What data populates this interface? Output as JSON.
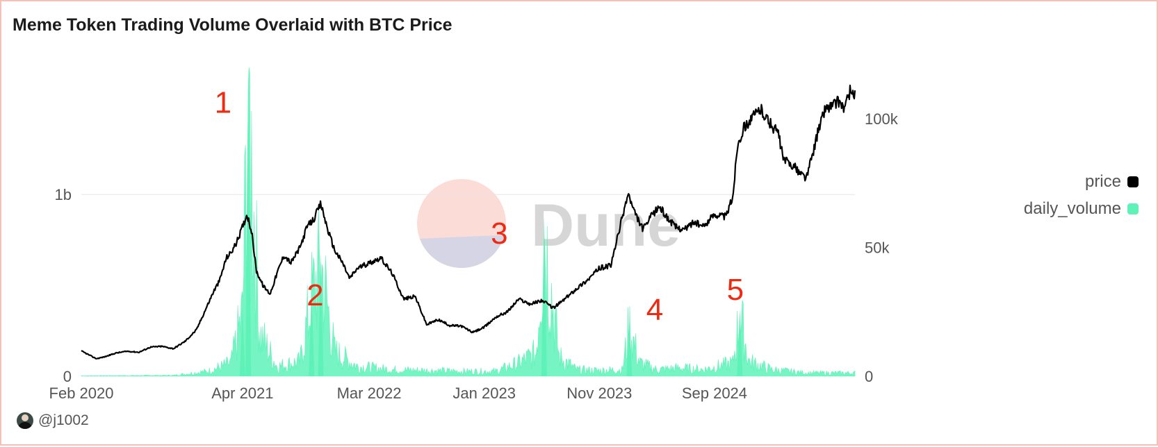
{
  "title": "Meme Token Trading Volume Overlaid with BTC Price",
  "author": "@j1002",
  "watermark": "Dune",
  "colors": {
    "price": "#000000",
    "volume": "#5ef2b8",
    "grid": "#e6e6e6",
    "annotation": "#ee2a12",
    "watermark_top": "#fbdcd6",
    "watermark_bottom": "#d6d5e6"
  },
  "chart_data": {
    "type": "line",
    "title": "Meme Token Trading Volume Overlaid with BTC Price",
    "x_range": [
      "2020-02-01",
      "2025-06-10"
    ],
    "x_ticks": [
      "Feb 2020",
      "Apr 2021",
      "Mar 2022",
      "Jan 2023",
      "Nov 2023",
      "Sep 2024"
    ],
    "x_tick_months": [
      0,
      14,
      25,
      35,
      45,
      55
    ],
    "y_left": {
      "label": "daily_volume",
      "range": [
        0,
        1700000000
      ],
      "ticks": [
        0,
        1000000000
      ],
      "tick_labels": [
        "0",
        "1b"
      ]
    },
    "y_right": {
      "label": "price",
      "range": [
        0,
        120000
      ],
      "ticks": [
        0,
        50000,
        100000
      ],
      "tick_labels": [
        "0",
        "50k",
        "100k"
      ]
    },
    "grid": true,
    "legend_position": "right",
    "series": [
      {
        "name": "price",
        "axis": "right",
        "points": [
          [
            0,
            9800
          ],
          [
            1.3,
            6800
          ],
          [
            2,
            7500
          ],
          [
            3,
            9000
          ],
          [
            4,
            9700
          ],
          [
            5,
            9300
          ],
          [
            6,
            11300
          ],
          [
            7,
            11600
          ],
          [
            8,
            10700
          ],
          [
            9,
            13500
          ],
          [
            10,
            18000
          ],
          [
            11,
            28000
          ],
          [
            11.5,
            33000
          ],
          [
            12,
            37000
          ],
          [
            12.6,
            46000
          ],
          [
            13,
            48000
          ],
          [
            13.5,
            52000
          ],
          [
            14,
            58000
          ],
          [
            14.4,
            63000
          ],
          [
            14.8,
            56000
          ],
          [
            15.2,
            41000
          ],
          [
            15.8,
            35000
          ],
          [
            16.4,
            32000
          ],
          [
            17,
            40000
          ],
          [
            17.6,
            47000
          ],
          [
            18.2,
            44000
          ],
          [
            19,
            50000
          ],
          [
            19.6,
            58000
          ],
          [
            20.2,
            61000
          ],
          [
            20.8,
            67000
          ],
          [
            21.4,
            57000
          ],
          [
            22,
            49000
          ],
          [
            22.7,
            44000
          ],
          [
            23.3,
            38000
          ],
          [
            24,
            42000
          ],
          [
            25,
            44000
          ],
          [
            26,
            46000
          ],
          [
            27,
            40000
          ],
          [
            28,
            30000
          ],
          [
            29,
            31000
          ],
          [
            30,
            20000
          ],
          [
            31,
            22000
          ],
          [
            32,
            19700
          ],
          [
            33,
            19500
          ],
          [
            34,
            17000
          ],
          [
            35,
            19000
          ],
          [
            36,
            23000
          ],
          [
            37,
            25000
          ],
          [
            38,
            30000
          ],
          [
            39,
            28000
          ],
          [
            40,
            29500
          ],
          [
            41,
            26500
          ],
          [
            42,
            30000
          ],
          [
            43,
            34000
          ],
          [
            44,
            37500
          ],
          [
            45,
            42000
          ],
          [
            46,
            43000
          ],
          [
            47,
            62000
          ],
          [
            47.5,
            71000
          ],
          [
            48,
            64000
          ],
          [
            48.8,
            57000
          ],
          [
            49.5,
            62000
          ],
          [
            50.2,
            66000
          ],
          [
            51,
            61000
          ],
          [
            51.6,
            58000
          ],
          [
            52.4,
            57000
          ],
          [
            53.2,
            60000
          ],
          [
            54,
            58000
          ],
          [
            55,
            63000
          ],
          [
            56,
            62000
          ],
          [
            56.6,
            70000
          ],
          [
            57,
            90000
          ],
          [
            57.6,
            97000
          ],
          [
            58.2,
            100000
          ],
          [
            59,
            104000
          ],
          [
            60,
            97000
          ],
          [
            60.5,
            95000
          ],
          [
            61,
            84000
          ],
          [
            61.8,
            82000
          ],
          [
            62.4,
            79000
          ],
          [
            63,
            77000
          ],
          [
            64,
            95000
          ],
          [
            64.6,
            104000
          ],
          [
            65.2,
            105000
          ],
          [
            65.8,
            107000
          ],
          [
            66.3,
            104000
          ],
          [
            66.8,
            111000
          ],
          [
            67.2,
            109000
          ]
        ]
      },
      {
        "name": "daily_volume",
        "axis": "left",
        "points": [
          [
            0,
            2000000
          ],
          [
            8,
            5000000
          ],
          [
            11,
            30000000
          ],
          [
            13,
            80000000
          ],
          [
            14,
            380000000
          ],
          [
            14.5,
            1700000000
          ],
          [
            15.5,
            260000000
          ],
          [
            17,
            60000000
          ],
          [
            19,
            90000000
          ],
          [
            20,
            470000000
          ],
          [
            20.8,
            680000000
          ],
          [
            22,
            150000000
          ],
          [
            24,
            60000000
          ],
          [
            27,
            40000000
          ],
          [
            30,
            35000000
          ],
          [
            33,
            30000000
          ],
          [
            36,
            30000000
          ],
          [
            38,
            80000000
          ],
          [
            39.5,
            140000000
          ],
          [
            40.2,
            880000000
          ],
          [
            41.5,
            120000000
          ],
          [
            43,
            40000000
          ],
          [
            45,
            35000000
          ],
          [
            47,
            40000000
          ],
          [
            47.6,
            300000000
          ],
          [
            48.5,
            80000000
          ],
          [
            50,
            40000000
          ],
          [
            52,
            50000000
          ],
          [
            54,
            40000000
          ],
          [
            56.6,
            80000000
          ],
          [
            57.2,
            370000000
          ],
          [
            58,
            90000000
          ],
          [
            60,
            40000000
          ],
          [
            63,
            20000000
          ],
          [
            67.2,
            20000000
          ]
        ]
      }
    ],
    "annotations": [
      "1",
      "2",
      "3",
      "4",
      "5"
    ],
    "annotation_months": [
      14,
      22,
      38,
      51.5,
      58.5
    ],
    "annotation_volume": [
      1450000000,
      390000000,
      730000000,
      310000000,
      420000000
    ]
  }
}
